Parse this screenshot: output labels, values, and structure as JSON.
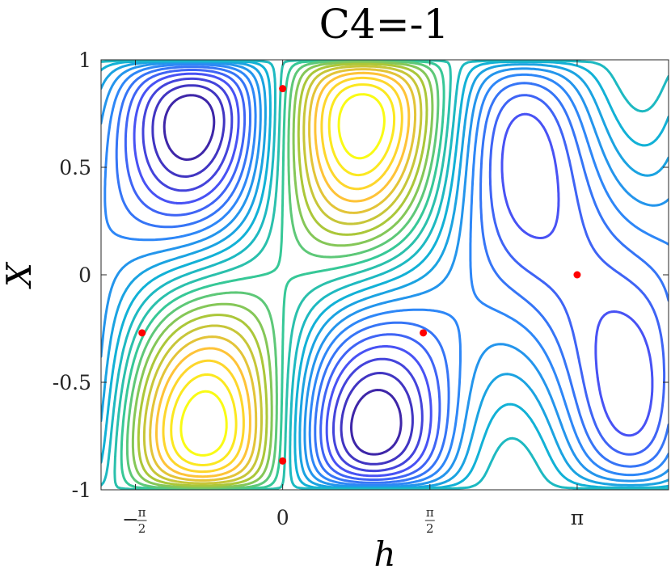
{
  "chart_data": {
    "type": "contour",
    "title": "C4=-1",
    "xlabel": "h",
    "ylabel": "X",
    "xlim": [
      -1.9373,
      4.1166
    ],
    "ylim": [
      -1,
      1
    ],
    "grid": false,
    "colormap": "parula",
    "x_ticks": [
      {
        "value": -1.5708,
        "label": "−π/2",
        "sign": "−",
        "num": "π",
        "den": "2"
      },
      {
        "value": 0,
        "label": "0"
      },
      {
        "value": 1.5708,
        "label": "π/2",
        "sign": "",
        "num": "π",
        "den": "2"
      },
      {
        "value": 3.1416,
        "label": "π"
      }
    ],
    "y_ticks": [
      {
        "value": 1,
        "label": "1"
      },
      {
        "value": 0.5,
        "label": "0.5"
      },
      {
        "value": 0,
        "label": "0"
      },
      {
        "value": -0.5,
        "label": "-0.5"
      },
      {
        "value": -1,
        "label": "-1"
      }
    ],
    "critical_points": [
      {
        "h": 0,
        "X": 0.866
      },
      {
        "h": 0,
        "X": -0.866
      },
      {
        "h": -1.5,
        "X": -0.27
      },
      {
        "h": 1.5,
        "X": -0.27
      },
      {
        "h": 3.1416,
        "X": 0
      }
    ],
    "marker_color": "#ff0000"
  }
}
